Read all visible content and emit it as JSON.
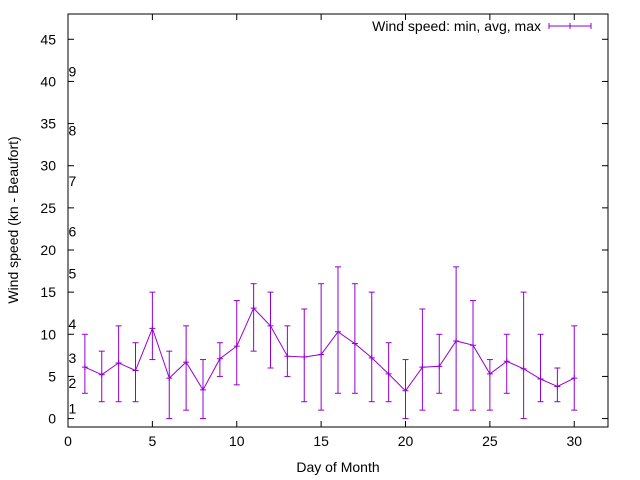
{
  "chart_data": {
    "type": "line",
    "title": "",
    "xlabel": "Day of Month",
    "ylabel": "Wind speed (kn - Beaufort)",
    "xlim": [
      0,
      32
    ],
    "ylim": [
      -1,
      48
    ],
    "xticks": [
      0,
      5,
      10,
      15,
      20,
      25,
      30
    ],
    "yticks": [
      0,
      5,
      10,
      15,
      20,
      25,
      30,
      35,
      40,
      45
    ],
    "grid": false,
    "legend_position": "top-right",
    "series": [
      {
        "name": "Wind speed: min, avg, max",
        "color": "#9400d3",
        "style": "line-with-error-bars",
        "x": [
          1,
          2,
          3,
          4,
          5,
          6,
          7,
          8,
          9,
          10,
          11,
          12,
          13,
          14,
          15,
          16,
          17,
          18,
          19,
          20,
          21,
          22,
          23,
          24,
          25,
          26,
          27,
          28,
          29,
          30
        ],
        "avg": [
          6.1,
          5.2,
          6.6,
          5.7,
          10.7,
          4.8,
          6.7,
          3.4,
          7.1,
          8.6,
          13.1,
          11.0,
          7.4,
          7.3,
          7.6,
          10.3,
          8.9,
          7.2,
          5.3,
          3.3,
          6.1,
          6.2,
          9.2,
          8.7,
          5.3,
          6.8,
          5.9,
          4.7,
          3.8,
          4.8
        ],
        "min": [
          3,
          2,
          2,
          2,
          7,
          0,
          1,
          0,
          5,
          4,
          8,
          6,
          5,
          2,
          1,
          3,
          3,
          2,
          2,
          0,
          1,
          3,
          1,
          1,
          1,
          3,
          0,
          2,
          2,
          1
        ],
        "max": [
          10,
          8,
          11,
          9,
          15,
          8,
          11,
          7,
          9,
          14,
          16,
          15,
          11,
          13,
          16,
          18,
          16,
          15,
          9,
          7,
          13,
          10,
          18,
          14,
          7,
          10,
          15,
          10,
          6,
          11
        ]
      }
    ],
    "annotations": [
      {
        "text": "1",
        "x": 0.5,
        "y": 1.2
      },
      {
        "text": "2",
        "x": 0.5,
        "y": 4.2
      },
      {
        "text": "3",
        "x": 0.5,
        "y": 7.2
      },
      {
        "text": "4",
        "x": 0.5,
        "y": 11.2
      },
      {
        "text": "5",
        "x": 0.5,
        "y": 17.2
      },
      {
        "text": "6",
        "x": 0.5,
        "y": 22.2
      },
      {
        "text": "7",
        "x": 0.5,
        "y": 28.2
      },
      {
        "text": "8",
        "x": 0.5,
        "y": 34.2
      },
      {
        "text": "9",
        "x": 0.5,
        "y": 41.2
      }
    ]
  }
}
